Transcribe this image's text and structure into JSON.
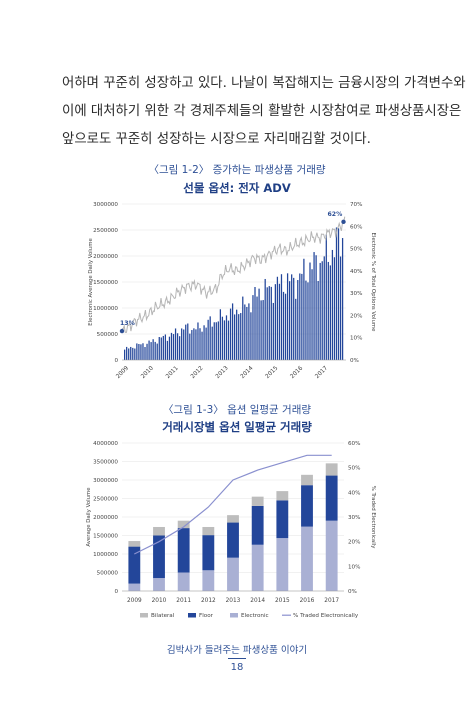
{
  "paragraph": [
    "어하며 꾸준히 성장하고 있다. 나날이 복잡해지는 금융시장의 가격변수와",
    "이에 대처하기 위한 각 경제주체들의 활발한 시장참여로 파생상품시장은",
    "앞으로도 꾸준히 성장하는 시장으로 자리매김할 것이다."
  ],
  "figure1": {
    "caption": "〈그림 1-2〉 증가하는 파생상품 거래량",
    "title": "선물 옵션: 전자 ADV"
  },
  "figure2": {
    "caption": "〈그림 1-3〉 옵션 일평균 거래량",
    "title": "거래시장별 옵션 일평균 거래량"
  },
  "footer": {
    "book_title": "김박사가 들려주는 파생상품 이야기",
    "page_number": "18"
  },
  "colors": {
    "bar_blue": "#23469a",
    "bar_light": "#a9b0d4",
    "bar_gray": "#bdbdbd",
    "line_gray": "#b5b5b5",
    "line_purple": "#8a90cf",
    "text_blue": "#2d4f95"
  },
  "chart_data": [
    {
      "type": "bar",
      "ylabel": "Electronic Average Daily Volume",
      "y2label": "Electronic % of Total Options Volume",
      "ylim": [
        0,
        3000000
      ],
      "y2lim": [
        0,
        70
      ],
      "yticks": [
        "3000000",
        "2500000",
        "2000000",
        "1500000",
        "1000000",
        "500000",
        "0"
      ],
      "y2ticks": [
        "70%",
        "60%",
        "50%",
        "40%",
        "30%",
        "20%",
        "10%",
        "0%"
      ],
      "categories": [
        "2009",
        "2010",
        "2011",
        "2012",
        "2013",
        "2014",
        "2015",
        "2016",
        "2017"
      ],
      "annotations": [
        {
          "label": "13%",
          "year": 2009.0,
          "pct": 13
        },
        {
          "label": "62%",
          "year": 2017.9,
          "pct": 62
        }
      ],
      "bar_anchors_year": [
        2009.0,
        2009.5,
        2010.0,
        2010.5,
        2011.0,
        2011.5,
        2012.0,
        2012.5,
        2013.0,
        2013.5,
        2014.0,
        2014.5,
        2015.0,
        2015.5,
        2016.0,
        2016.5,
        2017.0,
        2017.5,
        2017.95
      ],
      "bar_anchors_adv": [
        200000,
        280000,
        330000,
        420000,
        500000,
        620000,
        600000,
        720000,
        820000,
        950000,
        1050000,
        1300000,
        1380000,
        1500000,
        1500000,
        1750000,
        1900000,
        2100000,
        2400000
      ],
      "line_anchors_year": [
        2009.0,
        2009.3,
        2009.6,
        2010.0,
        2010.4,
        2010.8,
        2011.2,
        2011.6,
        2012.0,
        2012.4,
        2012.8,
        2013.0,
        2013.3,
        2013.6,
        2014.0,
        2014.3,
        2014.6,
        2015.0,
        2015.3,
        2015.6,
        2016.0,
        2016.3,
        2016.6,
        2017.0,
        2017.3,
        2017.6,
        2017.95
      ],
      "line_anchors_pct": [
        13,
        15,
        18,
        20,
        24,
        26,
        30,
        33,
        34,
        30,
        32,
        38,
        41,
        40,
        43,
        46,
        45,
        48,
        50,
        49,
        52,
        53,
        55,
        55,
        57,
        58,
        62
      ]
    },
    {
      "type": "bar",
      "ylabel": "Average Daily Volume",
      "y2label": "% Traded Electronically",
      "ylim": [
        0,
        4000000
      ],
      "y2lim": [
        0,
        60
      ],
      "yticks": [
        "4000000",
        "3500000",
        "3000000",
        "2500000",
        "2000000",
        "1500000",
        "1000000",
        "500000",
        "0"
      ],
      "y2ticks": [
        "60%",
        "50%",
        "40%",
        "30%",
        "20%",
        "10%",
        "0%"
      ],
      "categories": [
        "2009",
        "2010",
        "2011",
        "2012",
        "2013",
        "2014",
        "2015",
        "2016",
        "2017"
      ],
      "series": [
        {
          "name": "Electronic",
          "values": [
            200000,
            350000,
            500000,
            560000,
            900000,
            1250000,
            1430000,
            1740000,
            1900000
          ]
        },
        {
          "name": "Floor",
          "values": [
            1000000,
            1150000,
            1200000,
            950000,
            950000,
            1050000,
            1020000,
            1120000,
            1220000
          ]
        },
        {
          "name": "Bilateral",
          "values": [
            150000,
            230000,
            200000,
            220000,
            200000,
            250000,
            250000,
            280000,
            330000
          ]
        }
      ],
      "line": {
        "name": "% Traded Electronically",
        "values": [
          15,
          20,
          26,
          34,
          45,
          49,
          52,
          55,
          55
        ]
      },
      "legend": [
        "Bilateral",
        "Floor",
        "Electronic",
        "% Traded Electronically"
      ],
      "legend_position": "bottom"
    }
  ]
}
